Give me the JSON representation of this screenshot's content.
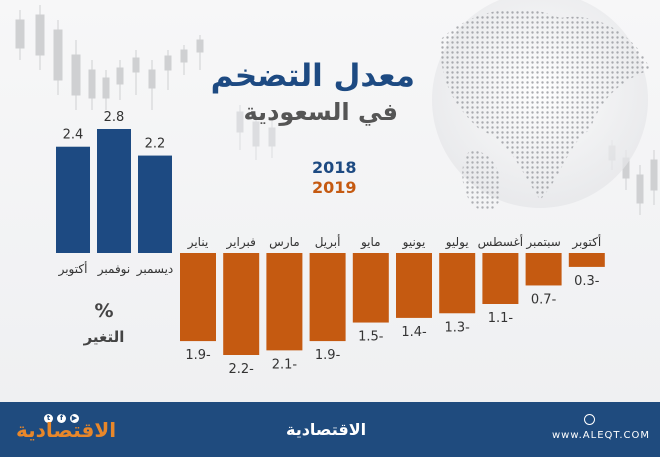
{
  "title": "معدل التضخم",
  "subtitle": "في السعودية",
  "legend": {
    "y2018": "2018",
    "y2019": "2019",
    "color2018": "#1d4a82",
    "color2019": "#c55a11"
  },
  "unit": "%",
  "unit_label": "التغير",
  "footer": {
    "logo_left": "الاقتصادية",
    "logo_center": "الاقتصادية",
    "url": "www.ALEQT.COM"
  },
  "chart_data": {
    "type": "bar",
    "series": [
      {
        "name": "2018",
        "categories": [
          "أكتوبر",
          "نوفمبر",
          "ديسمبر"
        ],
        "values": [
          2.4,
          2.8,
          2.2
        ]
      },
      {
        "name": "2019",
        "categories": [
          "يناير",
          "فبراير",
          "مارس",
          "أبريل",
          "مايو",
          "يونيو",
          "يوليو",
          "أغسطس",
          "سبتمبر",
          "أكتوبر"
        ],
        "values": [
          -1.9,
          -2.2,
          -2.1,
          -1.9,
          -1.5,
          -1.4,
          -1.3,
          -1.1,
          -0.7,
          -0.3
        ]
      }
    ],
    "labels_2018": [
      "2.4",
      "2.8",
      "2.2"
    ],
    "labels_2019": [
      "1.9-",
      "2.2-",
      "2.1-",
      "1.9-",
      "1.5-",
      "1.4-",
      "1.3-",
      "1.1-",
      "0.7-",
      "0.3-"
    ]
  }
}
